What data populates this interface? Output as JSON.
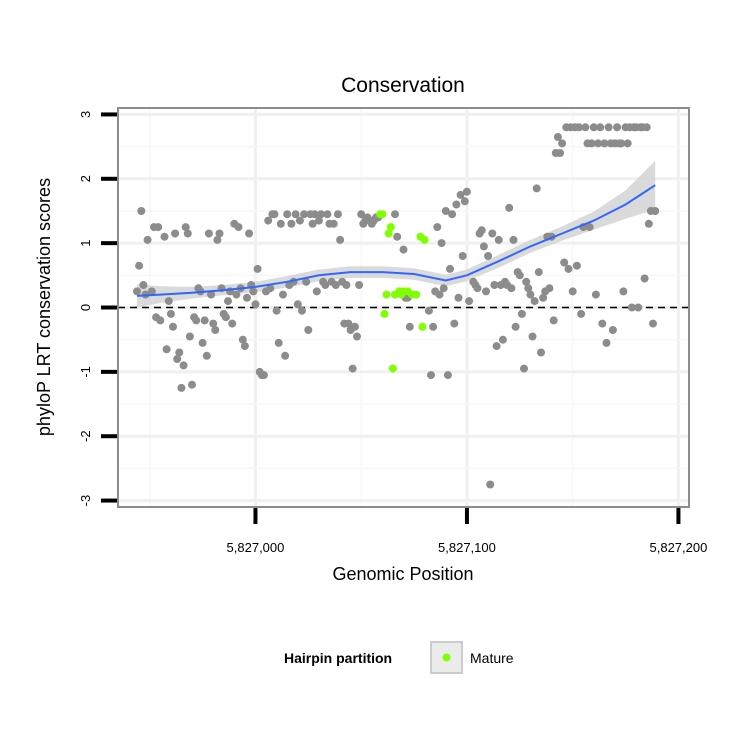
{
  "chart_data": {
    "type": "scatter",
    "title": "Conservation",
    "xlabel": "Genomic Position",
    "ylabel": "phyloP LRT conservation scores",
    "xlim": [
      5826935,
      5827205
    ],
    "ylim": [
      -3.1,
      3.1
    ],
    "x_ticks": [
      5827000,
      5827100,
      5827200
    ],
    "x_tick_labels": [
      "5,827,000",
      "5,827,100",
      "5,827,200"
    ],
    "y_ticks": [
      -3,
      -2,
      -1,
      0,
      1,
      2,
      3
    ],
    "y_tick_labels": [
      "-3",
      "-2",
      "-1",
      "0",
      "1",
      "2",
      "3"
    ],
    "grid": true,
    "reference_line": {
      "y": 0,
      "style": "dashed"
    },
    "legend": {
      "title": "Hairpin partition",
      "placement": "bottom",
      "entries": [
        {
          "label": "Mature",
          "color": "#7fff00"
        }
      ]
    },
    "colors": {
      "other": "#8c8c8c",
      "mature": "#7fff00",
      "smooth": "#3366ff",
      "band": "#d3d3d3"
    },
    "series": [
      {
        "group": "other",
        "points": [
          [
            5826944,
            0.25
          ],
          [
            5826945,
            0.65
          ],
          [
            5826946,
            1.5
          ],
          [
            5826947,
            0.35
          ],
          [
            5826948,
            0.2
          ],
          [
            5826949,
            1.05
          ],
          [
            5826951,
            0.25
          ],
          [
            5826952,
            1.25
          ],
          [
            5826953,
            -0.15
          ],
          [
            5826954,
            1.25
          ],
          [
            5826955,
            -0.2
          ],
          [
            5826957,
            1.1
          ],
          [
            5826958,
            -0.65
          ],
          [
            5826959,
            0.1
          ],
          [
            5826960,
            -0.1
          ],
          [
            5826961,
            -0.3
          ],
          [
            5826962,
            1.15
          ],
          [
            5826963,
            -0.8
          ],
          [
            5826964,
            -0.7
          ],
          [
            5826965,
            -1.25
          ],
          [
            5826966,
            -0.9
          ],
          [
            5826967,
            1.25
          ],
          [
            5826968,
            1.15
          ],
          [
            5826969,
            -0.45
          ],
          [
            5826970,
            -1.2
          ],
          [
            5826971,
            -0.15
          ],
          [
            5826972,
            -0.2
          ],
          [
            5826973,
            0.3
          ],
          [
            5826974,
            0.25
          ],
          [
            5826975,
            -0.55
          ],
          [
            5826976,
            -0.2
          ],
          [
            5826977,
            -0.75
          ],
          [
            5826978,
            1.15
          ],
          [
            5826979,
            0.2
          ],
          [
            5826980,
            -0.25
          ],
          [
            5826981,
            -0.35
          ],
          [
            5826982,
            1.05
          ],
          [
            5826983,
            1.15
          ],
          [
            5826984,
            0.3
          ],
          [
            5826985,
            -0.1
          ],
          [
            5826986,
            -0.15
          ],
          [
            5826987,
            0.1
          ],
          [
            5826988,
            0.25
          ],
          [
            5826989,
            -0.25
          ],
          [
            5826990,
            1.3
          ],
          [
            5826991,
            0.2
          ],
          [
            5826992,
            1.25
          ],
          [
            5826993,
            0.3
          ],
          [
            5826994,
            -0.5
          ],
          [
            5826995,
            -0.6
          ],
          [
            5826996,
            0.15
          ],
          [
            5826997,
            1.15
          ],
          [
            5826998,
            0.35
          ],
          [
            5826999,
            0.25
          ],
          [
            5827000,
            0.05
          ],
          [
            5827001,
            0.6
          ],
          [
            5827002,
            -1.0
          ],
          [
            5827003,
            -1.05
          ],
          [
            5827004,
            -1.05
          ],
          [
            5827005,
            0.25
          ],
          [
            5827006,
            1.35
          ],
          [
            5827007,
            0.3
          ],
          [
            5827008,
            1.45
          ],
          [
            5827009,
            1.45
          ],
          [
            5827010,
            -0.05
          ],
          [
            5827011,
            -0.55
          ],
          [
            5827012,
            1.3
          ],
          [
            5827013,
            0.2
          ],
          [
            5827014,
            -0.75
          ],
          [
            5827015,
            1.45
          ],
          [
            5827016,
            0.35
          ],
          [
            5827017,
            1.3
          ],
          [
            5827018,
            0.4
          ],
          [
            5827019,
            1.45
          ],
          [
            5827020,
            0.05
          ],
          [
            5827021,
            1.35
          ],
          [
            5827022,
            -0.05
          ],
          [
            5827023,
            1.45
          ],
          [
            5827024,
            0.4
          ],
          [
            5827025,
            -0.35
          ],
          [
            5827026,
            1.45
          ],
          [
            5827027,
            1.3
          ],
          [
            5827028,
            1.45
          ],
          [
            5827029,
            0.25
          ],
          [
            5827030,
            1.35
          ],
          [
            5827031,
            1.45
          ],
          [
            5827032,
            0.4
          ],
          [
            5827033,
            0.35
          ],
          [
            5827034,
            1.45
          ],
          [
            5827035,
            1.3
          ],
          [
            5827036,
            0.4
          ],
          [
            5827037,
            1.3
          ],
          [
            5827038,
            0.35
          ],
          [
            5827039,
            1.45
          ],
          [
            5827040,
            1.05
          ],
          [
            5827041,
            0.4
          ],
          [
            5827042,
            -0.25
          ],
          [
            5827043,
            0.35
          ],
          [
            5827044,
            -0.25
          ],
          [
            5827045,
            -0.35
          ],
          [
            5827046,
            -0.95
          ],
          [
            5827047,
            -0.3
          ],
          [
            5827048,
            -0.45
          ],
          [
            5827049,
            0.35
          ],
          [
            5827050,
            1.45
          ],
          [
            5827051,
            1.3
          ],
          [
            5827052,
            1.35
          ],
          [
            5827053,
            1.4
          ],
          [
            5827054,
            1.35
          ],
          [
            5827055,
            1.3
          ],
          [
            5827056,
            1.35
          ],
          [
            5827057,
            1.4
          ],
          [
            5827058,
            1.4
          ],
          [
            5827066,
            1.45
          ],
          [
            5827067,
            1.1
          ],
          [
            5827070,
            0.9
          ],
          [
            5827071,
            0.15
          ],
          [
            5827072,
            0.15
          ],
          [
            5827073,
            -0.3
          ],
          [
            5827082,
            -0.05
          ],
          [
            5827083,
            -1.05
          ],
          [
            5827084,
            -0.3
          ],
          [
            5827085,
            0.25
          ],
          [
            5827086,
            1.25
          ],
          [
            5827087,
            0.2
          ],
          [
            5827088,
            1.0
          ],
          [
            5827089,
            0.3
          ],
          [
            5827090,
            1.5
          ],
          [
            5827091,
            -1.05
          ],
          [
            5827092,
            0.6
          ],
          [
            5827093,
            1.45
          ],
          [
            5827094,
            -0.25
          ],
          [
            5827095,
            1.6
          ],
          [
            5827096,
            0.15
          ],
          [
            5827097,
            1.75
          ],
          [
            5827098,
            0.8
          ],
          [
            5827099,
            1.65
          ],
          [
            5827100,
            1.8
          ],
          [
            5827101,
            0.1
          ],
          [
            5827103,
            0.4
          ],
          [
            5827104,
            0.35
          ],
          [
            5827105,
            0.3
          ],
          [
            5827106,
            1.15
          ],
          [
            5827107,
            1.2
          ],
          [
            5827108,
            0.95
          ],
          [
            5827109,
            0.25
          ],
          [
            5827110,
            0.8
          ],
          [
            5827111,
            -2.75
          ],
          [
            5827112,
            1.15
          ],
          [
            5827113,
            0.35
          ],
          [
            5827114,
            -0.6
          ],
          [
            5827115,
            1.05
          ],
          [
            5827116,
            0.35
          ],
          [
            5827117,
            -0.5
          ],
          [
            5827118,
            0.4
          ],
          [
            5827119,
            0.35
          ],
          [
            5827120,
            1.55
          ],
          [
            5827121,
            0.3
          ],
          [
            5827122,
            1.05
          ],
          [
            5827123,
            -0.3
          ],
          [
            5827124,
            0.55
          ],
          [
            5827125,
            0.5
          ],
          [
            5827126,
            -0.1
          ],
          [
            5827127,
            -0.95
          ],
          [
            5827128,
            0.4
          ],
          [
            5827129,
            0.3
          ],
          [
            5827130,
            0.2
          ],
          [
            5827131,
            -0.45
          ],
          [
            5827132,
            0.1
          ],
          [
            5827133,
            1.85
          ],
          [
            5827134,
            0.55
          ],
          [
            5827135,
            -0.7
          ],
          [
            5827136,
            0.15
          ],
          [
            5827137,
            0.25
          ],
          [
            5827138,
            1.1
          ],
          [
            5827139,
            0.3
          ],
          [
            5827140,
            1.1
          ],
          [
            5827141,
            -0.2
          ],
          [
            5827142,
            2.4
          ],
          [
            5827143,
            2.65
          ],
          [
            5827144,
            2.4
          ],
          [
            5827145,
            2.55
          ],
          [
            5827146,
            0.7
          ],
          [
            5827147,
            2.8
          ],
          [
            5827148,
            0.6
          ],
          [
            5827149,
            2.8
          ],
          [
            5827150,
            0.25
          ],
          [
            5827151,
            2.8
          ],
          [
            5827152,
            0.65
          ],
          [
            5827153,
            2.8
          ],
          [
            5827154,
            -0.1
          ],
          [
            5827155,
            1.25
          ],
          [
            5827156,
            2.8
          ],
          [
            5827157,
            2.55
          ],
          [
            5827158,
            1.25
          ],
          [
            5827159,
            2.55
          ],
          [
            5827160,
            2.8
          ],
          [
            5827161,
            0.2
          ],
          [
            5827162,
            2.55
          ],
          [
            5827163,
            2.8
          ],
          [
            5827164,
            -0.25
          ],
          [
            5827165,
            2.55
          ],
          [
            5827166,
            -0.55
          ],
          [
            5827167,
            2.8
          ],
          [
            5827168,
            2.55
          ],
          [
            5827169,
            -0.35
          ],
          [
            5827170,
            2.55
          ],
          [
            5827171,
            2.8
          ],
          [
            5827172,
            2.55
          ],
          [
            5827173,
            2.55
          ],
          [
            5827174,
            0.25
          ],
          [
            5827175,
            2.8
          ],
          [
            5827176,
            2.55
          ],
          [
            5827177,
            2.8
          ],
          [
            5827178,
            0.0
          ],
          [
            5827179,
            2.8
          ],
          [
            5827180,
            2.8
          ],
          [
            5827181,
            0.0
          ],
          [
            5827182,
            2.8
          ],
          [
            5827183,
            2.8
          ],
          [
            5827184,
            0.45
          ],
          [
            5827185,
            2.8
          ],
          [
            5827186,
            1.3
          ],
          [
            5827187,
            1.5
          ],
          [
            5827188,
            -0.25
          ],
          [
            5827189,
            1.5
          ]
        ]
      },
      {
        "group": "mature",
        "points": [
          [
            5827059,
            1.45
          ],
          [
            5827060,
            1.45
          ],
          [
            5827061,
            -0.1
          ],
          [
            5827062,
            0.2
          ],
          [
            5827063,
            1.15
          ],
          [
            5827064,
            1.25
          ],
          [
            5827065,
            -0.95
          ],
          [
            5827066,
            0.2
          ],
          [
            5827068,
            0.25
          ],
          [
            5827069,
            0.2
          ],
          [
            5827070,
            0.25
          ],
          [
            5827072,
            0.25
          ],
          [
            5827074,
            0.2
          ],
          [
            5827076,
            0.2
          ],
          [
            5827078,
            1.1
          ],
          [
            5827079,
            -0.3
          ],
          [
            5827080,
            1.05
          ]
        ]
      }
    ],
    "smooth": {
      "x": [
        5826944,
        5826955,
        5826970,
        5826985,
        5827000,
        5827015,
        5827030,
        5827045,
        5827060,
        5827075,
        5827090,
        5827100,
        5827115,
        5827130,
        5827145,
        5827160,
        5827175,
        5827189
      ],
      "y": [
        0.18,
        0.2,
        0.23,
        0.27,
        0.32,
        0.4,
        0.5,
        0.55,
        0.55,
        0.52,
        0.42,
        0.5,
        0.72,
        0.95,
        1.15,
        1.35,
        1.6,
        1.9
      ],
      "se": [
        0.18,
        0.13,
        0.09,
        0.08,
        0.08,
        0.09,
        0.09,
        0.09,
        0.09,
        0.09,
        0.09,
        0.09,
        0.1,
        0.1,
        0.11,
        0.14,
        0.22,
        0.38
      ]
    }
  }
}
